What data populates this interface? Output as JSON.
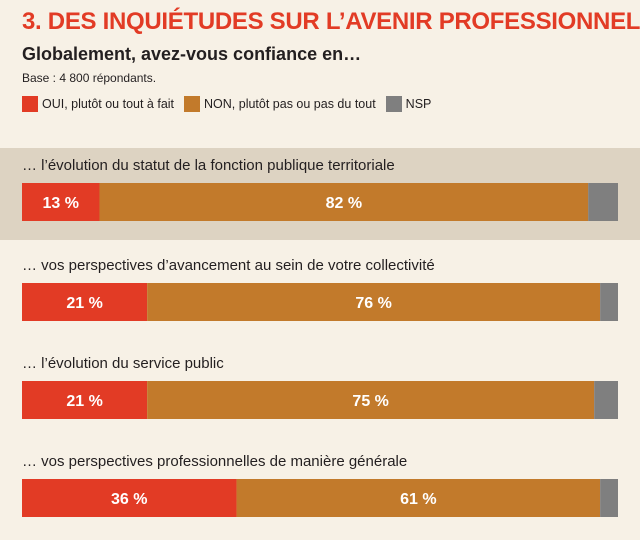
{
  "title": "3. DES INQUIÉTUDES SUR L’AVENIR PROFESSIONNEL",
  "subtitle": "Globalement, avez-vous confiance en…",
  "base": "Base : 4 800 répondants.",
  "colors": {
    "oui": "#e23b25",
    "non": "#c27a2b",
    "nsp": "#7f7f7f",
    "highlight": "#ddd3c2",
    "background": "#f7f1e6"
  },
  "legend": [
    {
      "key": "oui",
      "label": "OUI, plutôt ou tout à fait"
    },
    {
      "key": "non",
      "label": "NON, plutôt pas ou pas du tout"
    },
    {
      "key": "nsp",
      "label": "NSP"
    }
  ],
  "chart_data": {
    "type": "bar",
    "orientation": "horizontal",
    "stacked": true,
    "xlim": [
      0,
      100
    ],
    "grid": false,
    "legend_position": "top",
    "categories": [
      "… l’évolution du statut de la fonction publique territoriale",
      "… vos perspectives d’avancement au sein de votre collectivité",
      "… l’évolution du service public",
      "… vos perspectives professionnelles de manière générale"
    ],
    "highlighted_category_index": 0,
    "series": [
      {
        "name": "OUI, plutôt ou tout à fait",
        "key": "oui",
        "values": [
          13,
          21,
          21,
          36
        ],
        "labels": [
          "13 %",
          "21 %",
          "21 %",
          "36 %"
        ]
      },
      {
        "name": "NON, plutôt pas ou pas du tout",
        "key": "non",
        "values": [
          82,
          76,
          75,
          61
        ],
        "labels": [
          "82 %",
          "76 %",
          "75 %",
          "61 %"
        ]
      },
      {
        "name": "NSP",
        "key": "nsp",
        "values": [
          5,
          3,
          4,
          3
        ],
        "labels": [
          "",
          "",
          "",
          ""
        ]
      }
    ]
  }
}
